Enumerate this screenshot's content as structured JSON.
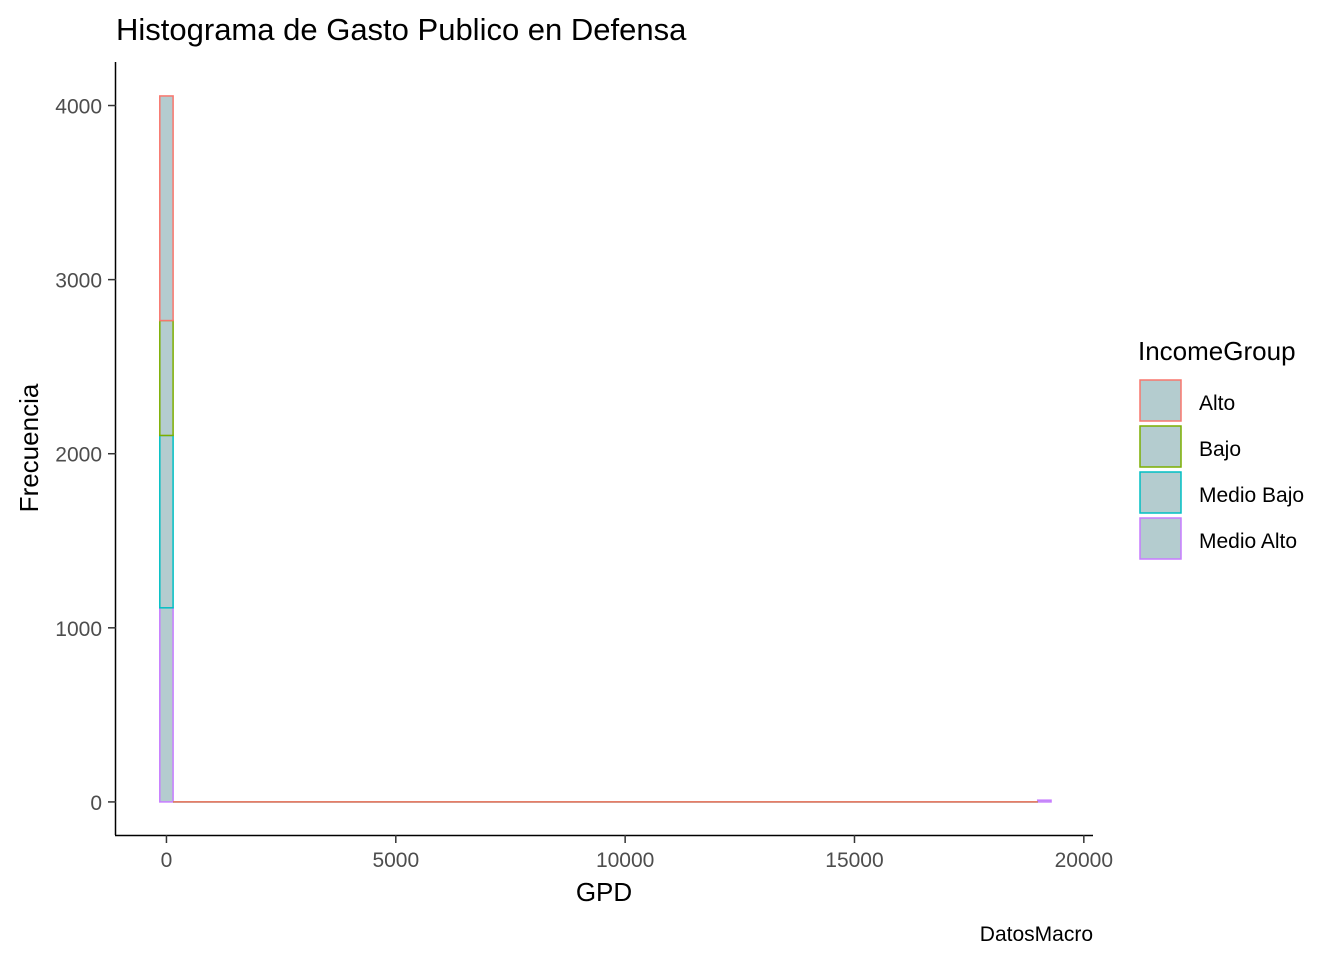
{
  "chart_data": {
    "type": "bar",
    "title": "Histograma de Gasto Publico en Defensa",
    "xlabel": "GPD",
    "ylabel": "Frecuencia",
    "caption": "DatosMacro",
    "xlim": [
      -1100,
      20200
    ],
    "ylim": [
      -190,
      4250
    ],
    "x_ticks": [
      0,
      5000,
      10000,
      15000,
      20000
    ],
    "x_tick_labels": [
      "0",
      "5000",
      "10000",
      "15000",
      "20000"
    ],
    "y_ticks": [
      0,
      1000,
      2000,
      3000,
      4000
    ],
    "y_tick_labels": [
      "0",
      "1000",
      "2000",
      "3000",
      "4000"
    ],
    "grid": false,
    "stacked": true,
    "fill_color": "#b4cccf",
    "bin_width": 290,
    "bins_start": -145,
    "bins_end": 19285,
    "legend": {
      "title": "IncomeGroup",
      "placement": "right"
    },
    "series": [
      {
        "name": "Medio Alto",
        "color": "#c77cff",
        "bins": [
          {
            "x0": -145,
            "x1": 145,
            "count": 1115
          },
          {
            "x0": 18995,
            "x1": 19285,
            "count": 10
          }
        ]
      },
      {
        "name": "Medio Bajo",
        "color": "#00bfc4",
        "bins": [
          {
            "x0": -145,
            "x1": 145,
            "count": 990
          }
        ]
      },
      {
        "name": "Bajo",
        "color": "#7cae00",
        "bins": [
          {
            "x0": -145,
            "x1": 145,
            "count": 660
          }
        ]
      },
      {
        "name": "Alto",
        "color": "#f8766d",
        "bins": [
          {
            "x0": -145,
            "x1": 145,
            "count": 1290
          }
        ]
      }
    ],
    "legend_order": [
      "Alto",
      "Bajo",
      "Medio Bajo",
      "Medio Alto"
    ]
  }
}
